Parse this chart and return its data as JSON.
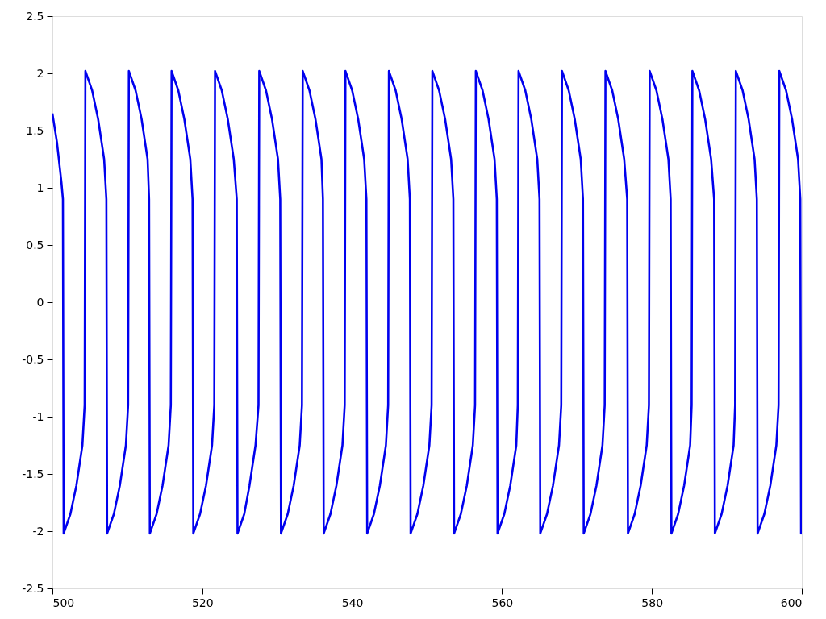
{
  "chart_data": {
    "type": "line",
    "xlim": [
      500,
      600
    ],
    "ylim": [
      -2.5,
      2.5
    ],
    "xticks": [
      500,
      520,
      540,
      560,
      580,
      600
    ],
    "yticks": [
      -2.5,
      -2,
      -1.5,
      -1,
      -0.5,
      0,
      0.5,
      1,
      1.5,
      2,
      2.5
    ],
    "grid": false,
    "line_style": "solid",
    "marker": "none",
    "series": [
      {
        "color": "#0000ee",
        "x": [
          500,
          500.6,
          501.2,
          501.4,
          501.5,
          502.4,
          503.2,
          504.0,
          504.3,
          504.4,
          505.3,
          506.1,
          506.9,
          507.2,
          507.3,
          508.2,
          509.0,
          509.8,
          510.1,
          510.2,
          511.1,
          511.9,
          512.7,
          512.9,
          513.0,
          513.9,
          514.7,
          515.5,
          515.8,
          515.9,
          516.8,
          517.6,
          518.4,
          518.7,
          518.8,
          519.7,
          520.5,
          521.3,
          521.6,
          521.7,
          522.6,
          523.4,
          524.2,
          524.6,
          524.7,
          525.6,
          526.3,
          527.1,
          527.5,
          527.6,
          528.5,
          529.3,
          530.1,
          530.4,
          530.5,
          531.4,
          532.2,
          533.0,
          533.3,
          533.4,
          534.3,
          535.1,
          535.9,
          536.1,
          536.2,
          537.1,
          537.9,
          538.7,
          539.0,
          539.1,
          540.0,
          540.8,
          541.6,
          541.9,
          542.0,
          542.9,
          543.7,
          544.5,
          544.8,
          544.9,
          545.8,
          546.6,
          547.4,
          547.7,
          547.8,
          548.7,
          549.5,
          550.3,
          550.6,
          550.7,
          551.6,
          552.4,
          553.2,
          553.5,
          553.6,
          554.5,
          555.3,
          556.1,
          556.4,
          556.5,
          557.4,
          558.2,
          559.0,
          559.3,
          559.4,
          560.3,
          561.1,
          561.9,
          562.1,
          562.2,
          563.1,
          563.9,
          564.7,
          565.0,
          565.1,
          566.0,
          566.8,
          567.6,
          567.9,
          568.0,
          568.9,
          569.7,
          570.5,
          570.8,
          570.9,
          571.8,
          572.6,
          573.4,
          573.7,
          573.8,
          574.7,
          575.5,
          576.3,
          576.7,
          576.8,
          577.7,
          578.5,
          579.3,
          579.6,
          579.7,
          580.6,
          581.4,
          582.2,
          582.5,
          582.6,
          583.5,
          584.3,
          585.1,
          585.3,
          585.4,
          586.3,
          587.1,
          587.9,
          588.3,
          588.4,
          589.3,
          590.1,
          590.9,
          591.1,
          591.2,
          592.1,
          592.9,
          593.7,
          594.0,
          594.1,
          595.0,
          595.8,
          596.6,
          596.9,
          597.0,
          597.9,
          598.7,
          599.5,
          599.8,
          599.9,
          600
        ],
        "values": [
          1.65,
          1.4,
          1.05,
          0.9,
          -2.02,
          -1.85,
          -1.6,
          -1.25,
          -0.9,
          2.02,
          1.85,
          1.6,
          1.25,
          0.9,
          -2.02,
          -1.85,
          -1.6,
          -1.25,
          -0.9,
          2.02,
          1.85,
          1.6,
          1.25,
          0.9,
          -2.02,
          -1.85,
          -1.6,
          -1.25,
          -0.9,
          2.02,
          1.85,
          1.6,
          1.25,
          0.9,
          -2.02,
          -1.85,
          -1.6,
          -1.25,
          -0.9,
          2.02,
          1.85,
          1.6,
          1.25,
          0.9,
          -2.02,
          -1.85,
          -1.6,
          -1.25,
          -0.9,
          2.02,
          1.85,
          1.6,
          1.25,
          0.9,
          -2.02,
          -1.85,
          -1.6,
          -1.25,
          -0.9,
          2.02,
          1.85,
          1.6,
          1.25,
          0.9,
          -2.02,
          -1.85,
          -1.6,
          -1.25,
          -0.9,
          2.02,
          1.85,
          1.6,
          1.25,
          0.9,
          -2.02,
          -1.85,
          -1.6,
          -1.25,
          -0.9,
          2.02,
          1.85,
          1.6,
          1.25,
          0.9,
          -2.02,
          -1.85,
          -1.6,
          -1.25,
          -0.9,
          2.02,
          1.85,
          1.6,
          1.25,
          0.9,
          -2.02,
          -1.85,
          -1.6,
          -1.25,
          -0.9,
          2.02,
          1.85,
          1.6,
          1.25,
          0.9,
          -2.02,
          -1.85,
          -1.6,
          -1.25,
          -0.9,
          2.02,
          1.85,
          1.6,
          1.25,
          0.9,
          -2.02,
          -1.85,
          -1.6,
          -1.25,
          -0.9,
          2.02,
          1.85,
          1.6,
          1.25,
          0.9,
          -2.02,
          -1.85,
          -1.6,
          -1.25,
          -0.9,
          2.02,
          1.85,
          1.6,
          1.25,
          0.9,
          -2.02,
          -1.85,
          -1.6,
          -1.25,
          -0.9,
          2.02,
          1.85,
          1.6,
          1.25,
          0.9,
          -2.02,
          -1.85,
          -1.6,
          -1.25,
          -0.9,
          2.02,
          1.85,
          1.6,
          1.25,
          0.9,
          -2.02,
          -1.85,
          -1.6,
          -1.25,
          -0.9,
          2.02,
          1.85,
          1.6,
          1.25,
          0.9,
          -2.02,
          -1.85,
          -1.6,
          -1.25,
          -0.9,
          2.02,
          1.85,
          1.6,
          1.25,
          0.9,
          -2.02,
          -2.0
        ]
      }
    ]
  }
}
